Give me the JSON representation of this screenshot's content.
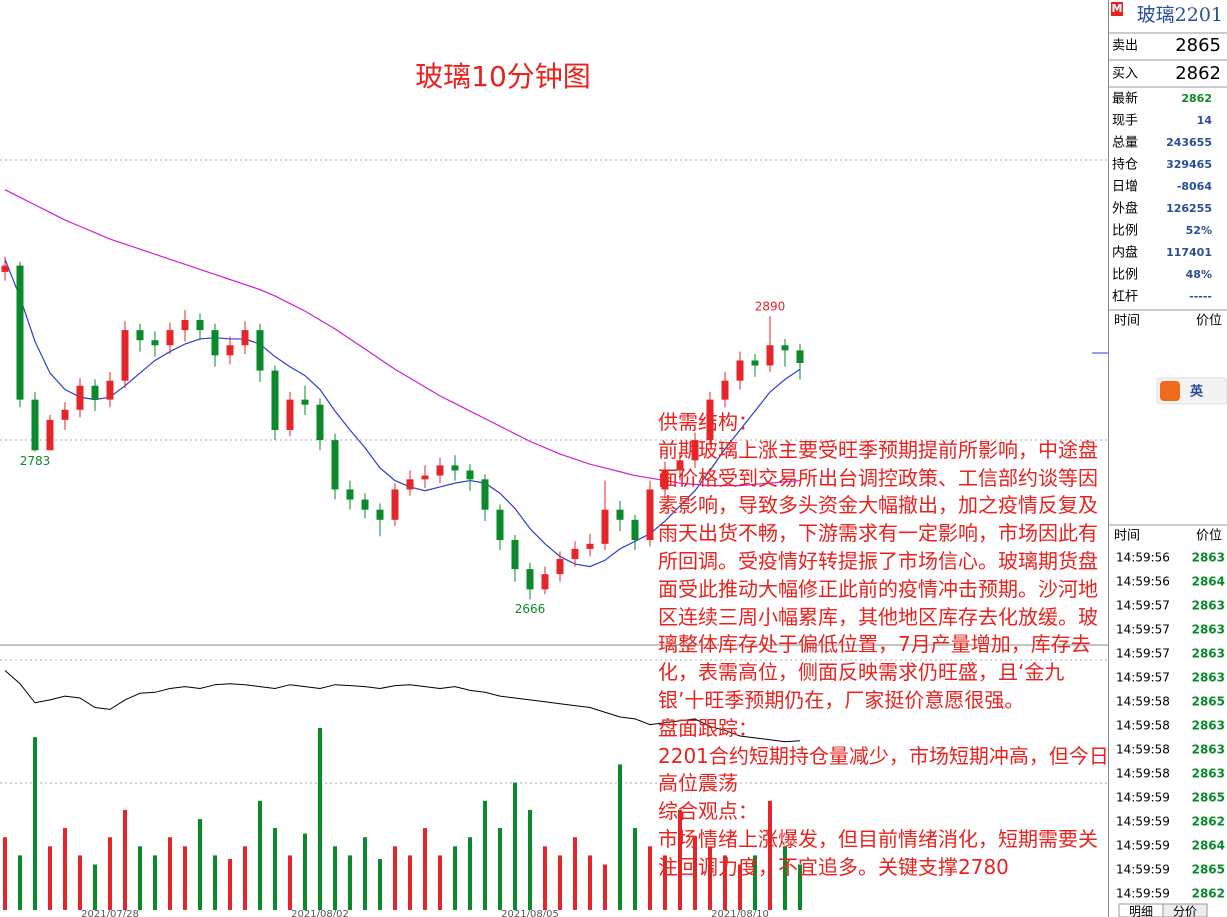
{
  "chart_data": {
    "type": "candlestick",
    "title": "玻璃10分钟图",
    "ylim": [
      2630,
      3140
    ],
    "up_color": "#e4262a",
    "down_color": "#0a8a2a",
    "open": [
      2925,
      2930,
      2824,
      2784,
      2808,
      2816,
      2835,
      2824,
      2839,
      2879,
      2871,
      2867,
      2879,
      2887,
      2879,
      2859,
      2867,
      2879,
      2847,
      2800,
      2824,
      2820,
      2792,
      2753,
      2745,
      2737,
      2729,
      2753,
      2761,
      2764,
      2772,
      2768,
      2761,
      2737,
      2713,
      2690,
      2674,
      2686,
      2698,
      2706,
      2710,
      2737,
      2729,
      2713,
      2753,
      2768,
      2776,
      2792,
      2824,
      2839,
      2855,
      2851,
      2867,
      2863
    ],
    "high": [
      2937,
      2933,
      2830,
      2812,
      2822,
      2841,
      2840,
      2846,
      2886,
      2884,
      2878,
      2885,
      2895,
      2892,
      2884,
      2874,
      2886,
      2884,
      2851,
      2830,
      2835,
      2825,
      2797,
      2760,
      2750,
      2742,
      2758,
      2768,
      2772,
      2778,
      2780,
      2773,
      2765,
      2741,
      2717,
      2695,
      2692,
      2704,
      2712,
      2718,
      2760,
      2744,
      2733,
      2760,
      2775,
      2782,
      2798,
      2830,
      2846,
      2862,
      2860,
      2890,
      2872,
      2868
    ],
    "low": [
      2918,
      2818,
      2783,
      2786,
      2800,
      2810,
      2815,
      2818,
      2833,
      2862,
      2858,
      2860,
      2870,
      2871,
      2850,
      2852,
      2860,
      2838,
      2792,
      2795,
      2812,
      2784,
      2745,
      2737,
      2730,
      2716,
      2724,
      2748,
      2754,
      2758,
      2760,
      2752,
      2728,
      2705,
      2680,
      2666,
      2670,
      2680,
      2692,
      2700,
      2705,
      2720,
      2705,
      2708,
      2746,
      2760,
      2770,
      2788,
      2818,
      2832,
      2842,
      2846,
      2850,
      2840
    ],
    "close": [
      2930,
      2824,
      2784,
      2808,
      2816,
      2835,
      2824,
      2839,
      2879,
      2871,
      2867,
      2879,
      2887,
      2879,
      2859,
      2867,
      2879,
      2847,
      2800,
      2824,
      2820,
      2792,
      2753,
      2745,
      2737,
      2729,
      2753,
      2761,
      2764,
      2772,
      2768,
      2761,
      2737,
      2713,
      2690,
      2674,
      2686,
      2698,
      2706,
      2710,
      2737,
      2729,
      2713,
      2753,
      2768,
      2776,
      2792,
      2824,
      2839,
      2855,
      2851,
      2867,
      2863,
      2853
    ],
    "lines": [
      {
        "color": "#2a3fd0",
        "values": [
          2935,
          2905,
          2870,
          2845,
          2832,
          2826,
          2824,
          2826,
          2835,
          2845,
          2855,
          2862,
          2868,
          2872,
          2873,
          2872,
          2872,
          2868,
          2858,
          2850,
          2843,
          2832,
          2815,
          2800,
          2786,
          2770,
          2760,
          2755,
          2752,
          2755,
          2758,
          2760,
          2758,
          2750,
          2738,
          2722,
          2710,
          2700,
          2694,
          2692,
          2697,
          2706,
          2712,
          2718,
          2728,
          2740,
          2752,
          2768,
          2785,
          2800,
          2815,
          2830,
          2840,
          2848
        ]
      },
      {
        "color": "#d21ed2",
        "values": [
          2990,
          2984,
          2978,
          2972,
          2966,
          2961,
          2956,
          2951,
          2947,
          2943,
          2939,
          2935,
          2931,
          2927,
          2923,
          2919,
          2915,
          2911,
          2906,
          2900,
          2894,
          2887,
          2880,
          2872,
          2864,
          2856,
          2848,
          2841,
          2834,
          2827,
          2821,
          2815,
          2809,
          2803,
          2797,
          2791,
          2786,
          2781,
          2777,
          2773,
          2770,
          2767,
          2764,
          2762,
          2760,
          2758,
          2757,
          2756,
          2756,
          2756,
          2757,
          2758,
          2759,
          2760
        ]
      }
    ],
    "extreme_labels": [
      2890,
      2783,
      2666
    ],
    "oscillator": {
      "color": "#000000",
      "ylim": [
        0,
        100
      ],
      "values": [
        89,
        75,
        55,
        58,
        62,
        60,
        50,
        48,
        58,
        65,
        66,
        70,
        72,
        70,
        74,
        75,
        74,
        72,
        70,
        74,
        72,
        70,
        74,
        73,
        72,
        70,
        73,
        74,
        72,
        70,
        72,
        68,
        66,
        62,
        60,
        58,
        56,
        54,
        52,
        50,
        45,
        40,
        38,
        32,
        34,
        36,
        38,
        30,
        26,
        20,
        18,
        16,
        14,
        15
      ]
    },
    "volume": {
      "ylim": [
        0,
        100
      ],
      "values": [
        40,
        30,
        95,
        35,
        45,
        30,
        25,
        40,
        55,
        35,
        30,
        40,
        35,
        50,
        30,
        28,
        35,
        60,
        45,
        30,
        42,
        100,
        35,
        30,
        40,
        28,
        35,
        30,
        45,
        30,
        35,
        40,
        60,
        45,
        70,
        55,
        35,
        30,
        40,
        30,
        25,
        80,
        45,
        35,
        30,
        55,
        40,
        35,
        30,
        25,
        30,
        60,
        35,
        25
      ]
    },
    "x_tick_labels": [
      "2021/07/28",
      "2021/08/02",
      "2021/08/05",
      "2021/08/10"
    ],
    "annotation": [
      {
        "heading": "供需结构：",
        "body": "前期玻璃上涨主要受旺季预期提前所影响，中途盘面价格受到交易所出台调控政策、工信部约谈等因素影响，导致多头资金大幅撤出，加之疫情反复及雨天出货不畅，下游需求有一定影响，市场因此有所回调。受疫情好转提振了市场信心。玻璃期货盘面受此推动大幅修正此前的疫情冲击预期。沙河地区连续三周小幅累库，其他地区库存去化放缓。玻璃整体库存处于偏低位置，7月产量增加，库存去化，表需高位，侧面反映需求仍旺盛，且‘金九银’十旺季预期仍在，厂家挺价意愿很强。"
      },
      {
        "heading": "盘面跟踪：",
        "body": "2201合约短期持仓量减少，市场短期冲高，但今日高位震荡"
      },
      {
        "heading": "综合观点：",
        "body": "市场情绪上涨爆发，但目前情绪消化，短期需要关注回调力度，不宜追多。关键支撑2780"
      }
    ]
  },
  "quote_panel": {
    "badge": "M",
    "symbol": "玻璃2201",
    "ask_label": "卖出",
    "ask": 2865,
    "bid_label": "买入",
    "bid": 2862,
    "stats": [
      {
        "label": "最新",
        "value": 2862
      },
      {
        "label": "现手",
        "value": 14
      },
      {
        "label": "总量",
        "value": 243655
      },
      {
        "label": "持仓",
        "value": 329465
      },
      {
        "label": "日增",
        "value": -8064
      },
      {
        "label": "外盘",
        "value": 126255
      },
      {
        "label": "比例",
        "value": "52%"
      },
      {
        "label": "内盘",
        "value": 117401
      },
      {
        "label": "比例",
        "value": "48%"
      },
      {
        "label": "杠杆",
        "value": "-----"
      }
    ],
    "upper_header": [
      "时间",
      "价位"
    ],
    "ime": "英",
    "tick_header": [
      "时间",
      "价位"
    ],
    "ticks": [
      [
        "14:59:56",
        2863
      ],
      [
        "14:59:56",
        2864
      ],
      [
        "14:59:57",
        2863
      ],
      [
        "14:59:57",
        2863
      ],
      [
        "14:59:57",
        2863
      ],
      [
        "14:59:57",
        2863
      ],
      [
        "14:59:58",
        2865
      ],
      [
        "14:59:58",
        2863
      ],
      [
        "14:59:58",
        2863
      ],
      [
        "14:59:58",
        2863
      ],
      [
        "14:59:59",
        2865
      ],
      [
        "14:59:59",
        2862
      ],
      [
        "14:59:59",
        2864
      ],
      [
        "14:59:59",
        2865
      ],
      [
        "14:59:59",
        2862
      ]
    ],
    "tabs": [
      "明细",
      "分价"
    ]
  }
}
